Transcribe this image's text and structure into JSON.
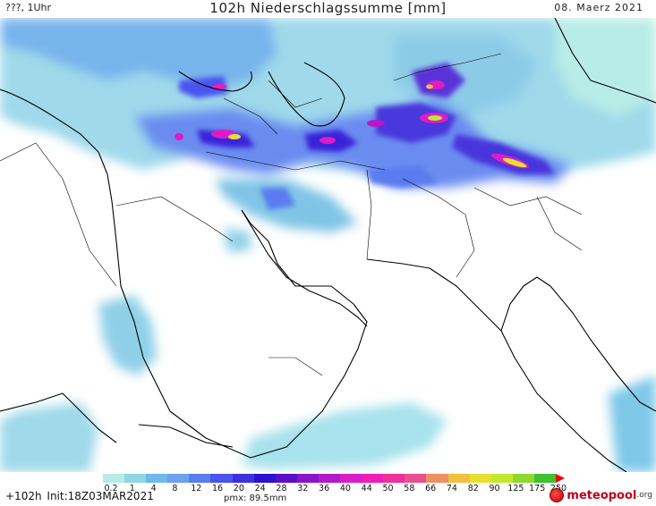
{
  "header": {
    "left": "???, 1Uhr",
    "title": "102h Niederschlagssumme [mm]",
    "date": "08. Maerz 2021"
  },
  "legend": {
    "ticks": [
      "0.2",
      "1",
      "4",
      "8",
      "12",
      "16",
      "20",
      "24",
      "28",
      "32",
      "36",
      "40",
      "44",
      "50",
      "58",
      "66",
      "74",
      "82",
      "90",
      "125",
      "175",
      "250"
    ],
    "colors": [
      "#b7ebe6",
      "#8fd6e6",
      "#6fb8ea",
      "#6ea0ee",
      "#5a7cf0",
      "#4a54ee",
      "#3c30e0",
      "#2a10d0",
      "#5a10c8",
      "#8a14c8",
      "#b418c8",
      "#dc1cc8",
      "#f01cb8",
      "#f0309a",
      "#e85090",
      "#f09060",
      "#f0c040",
      "#e8e030",
      "#c0e830",
      "#90d830",
      "#40c030",
      "#f00000"
    ]
  },
  "footer": {
    "lead": "+102h",
    "init": "Init:18Z03MAR2021",
    "pmx": "pmx: 89.5mm",
    "logo_text": "meteo",
    "logo_text2": "pool",
    "logo_suffix": ".org"
  },
  "map": {
    "land_color": "#ffffff",
    "coast_color": "#000000"
  }
}
